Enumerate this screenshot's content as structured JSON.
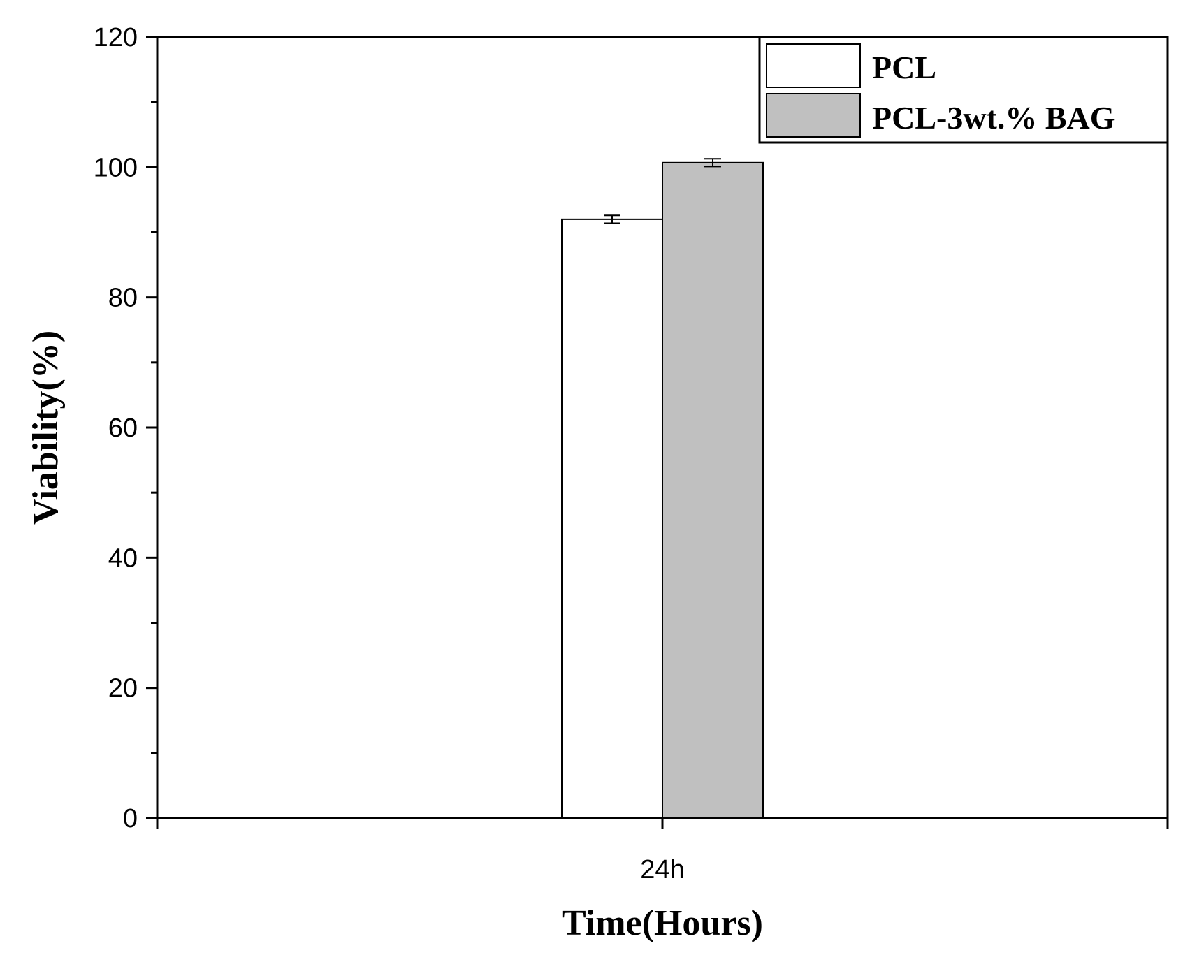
{
  "chart_data": {
    "type": "bar",
    "categories": [
      "24h"
    ],
    "series": [
      {
        "name": "PCL",
        "values": [
          92.0
        ],
        "errors": [
          0.6
        ],
        "color": "#ffffff"
      },
      {
        "name": "PCL-3wt.% BAG",
        "values": [
          100.7
        ],
        "errors": [
          0.6
        ],
        "color": "#c0c0c0"
      }
    ],
    "xlabel": "Time(Hours)",
    "ylabel": "Viability(%)",
    "ylim": [
      0,
      120
    ],
    "yticks": [
      "0",
      "20",
      "40",
      "60",
      "80",
      "100",
      "120"
    ],
    "grid": false,
    "legend_position": "top-right",
    "axis_color": "#000000"
  }
}
